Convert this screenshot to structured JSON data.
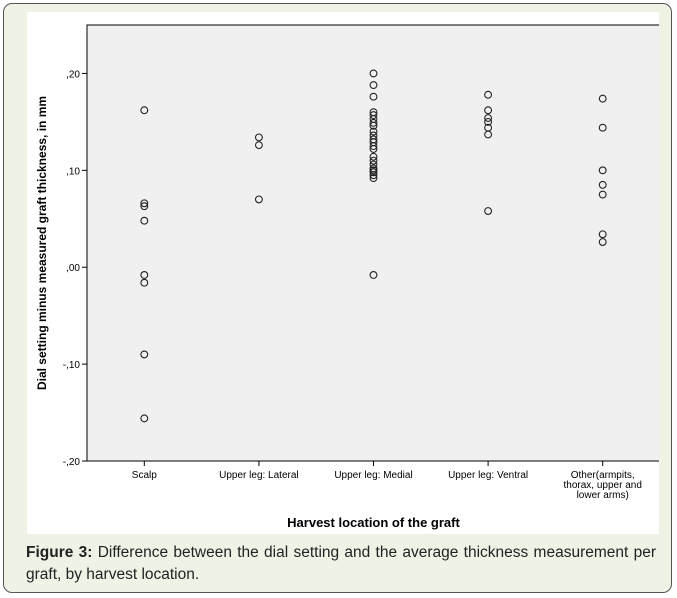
{
  "chart_data": {
    "type": "scatter",
    "xlabel": "Harvest location of the graft",
    "ylabel": "Dial setting minus measured graft thickness, in mm",
    "ylim": [
      -0.2,
      0.25
    ],
    "yticks": [
      -0.2,
      -0.1,
      0.0,
      0.1,
      0.2
    ],
    "ytick_labels": [
      "-,20",
      "-,10",
      ",00",
      ",10",
      ",20"
    ],
    "grid": false,
    "categories": [
      "Scalp",
      "Upper leg: Lateral",
      "Upper leg: Medial",
      "Upper leg: Ventral",
      "Other(armpits, thorax, upper and lower arms)"
    ],
    "category_lines": [
      [
        "Scalp"
      ],
      [
        "Upper leg: Lateral"
      ],
      [
        "Upper leg: Medial"
      ],
      [
        "Upper leg: Ventral"
      ],
      [
        "Other(armpits,",
        "thorax, upper and",
        "lower arms)"
      ]
    ],
    "series": [
      {
        "values": [
          [
            0.162,
            0.066,
            0.063,
            0.048,
            -0.008,
            -0.016,
            -0.09,
            -0.156
          ],
          [
            0.134,
            0.126,
            0.07
          ],
          [
            0.2,
            0.188,
            0.176,
            0.16,
            0.157,
            0.153,
            0.149,
            0.146,
            0.14,
            0.136,
            0.132,
            0.129,
            0.125,
            0.122,
            0.114,
            0.11,
            0.106,
            0.102,
            0.1,
            0.098,
            0.095,
            0.092,
            -0.008
          ],
          [
            0.178,
            0.162,
            0.154,
            0.15,
            0.144,
            0.137,
            0.058
          ],
          [
            0.174,
            0.144,
            0.1,
            0.085,
            0.075,
            0.034,
            0.026
          ]
        ]
      }
    ]
  },
  "caption": {
    "label": "Figure 3:",
    "text": " Difference between the dial setting and the average thickness measurement per graft, by harvest location."
  },
  "colors": {
    "frame_bg": "#eef3e6",
    "plot_bg": "#f0f0f0",
    "marker_stroke": "#222222"
  }
}
